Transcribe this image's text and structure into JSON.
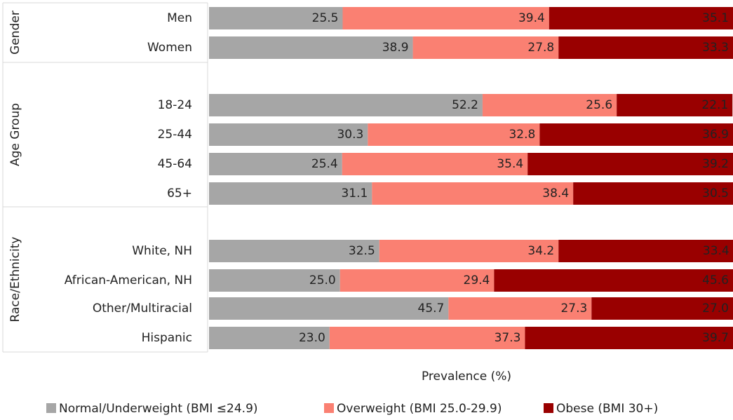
{
  "chart_data": {
    "type": "bar",
    "orientation": "horizontal",
    "stacked": true,
    "title": "",
    "xlabel": "Prevalence (%)",
    "ylabel": "",
    "xlim": [
      0,
      100
    ],
    "grid": false,
    "legend_position": "bottom",
    "groups": [
      {
        "name": "Gender",
        "categories": [
          "Men",
          "Women"
        ]
      },
      {
        "name": "Age Group",
        "categories": [
          "18-24",
          "25-44",
          "45-64",
          "65+"
        ]
      },
      {
        "name": "Race/Ethnicity",
        "categories": [
          "White, NH",
          "African-American, NH",
          "Other/Multiracial",
          "Hispanic"
        ]
      }
    ],
    "categories": [
      "Men",
      "Women",
      "18-24",
      "25-44",
      "45-64",
      "65+",
      "White, NH",
      "African-American, NH",
      "Other/Multiracial",
      "Hispanic"
    ],
    "series": [
      {
        "name": "Normal/Underweight (BMI ≤24.9)",
        "color": "#a6a6a6",
        "values": [
          25.5,
          38.9,
          52.2,
          30.3,
          25.4,
          31.1,
          32.5,
          25.0,
          45.7,
          23.0
        ]
      },
      {
        "name": "Overweight (BMI 25.0-29.9)",
        "color": "#fa8072",
        "values": [
          39.4,
          27.8,
          25.6,
          32.8,
          35.4,
          38.4,
          34.2,
          29.4,
          27.3,
          37.3
        ]
      },
      {
        "name": "Obese (BMI 30+)",
        "color": "#990000",
        "values": [
          35.1,
          33.3,
          22.1,
          36.9,
          39.2,
          30.5,
          33.4,
          45.6,
          27.0,
          39.7
        ]
      }
    ]
  }
}
